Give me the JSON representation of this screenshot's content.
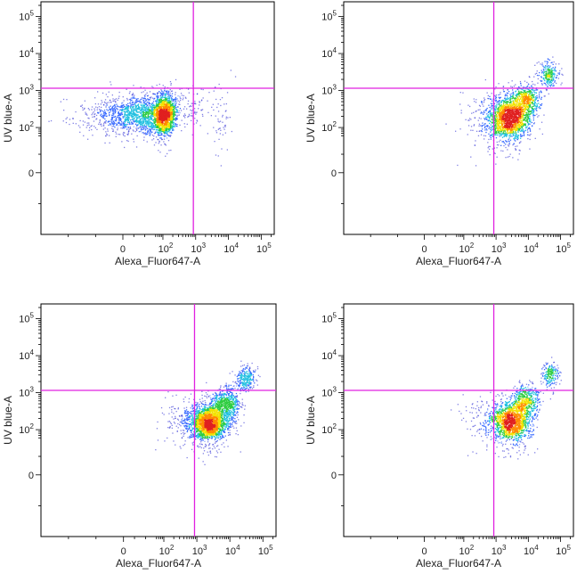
{
  "style": {
    "gate_color": "#e020e0",
    "density_colors": [
      "#1c1cd0",
      "#3a6bff",
      "#22c0e0",
      "#2ecc40",
      "#f2e200",
      "#ff8a00",
      "#e02020"
    ]
  },
  "chart_data": [
    {
      "type": "scatter",
      "plot": "top-left",
      "title": "",
      "xlabel": "Alexa_Fluor647-A",
      "ylabel": "UV blue-A",
      "xscale": "biexponential",
      "yscale": "biexponential",
      "xlim": [
        -150,
        250000
      ],
      "ylim": [
        -100,
        250000
      ],
      "x_tick_labels": [
        {
          "value": 0,
          "exp": ""
        },
        {
          "value": 100,
          "exp": "2"
        },
        {
          "value": 1000,
          "exp": "3"
        },
        {
          "value": 10000,
          "exp": "4"
        },
        {
          "value": 100000,
          "exp": "5"
        }
      ],
      "y_tick_labels": [
        {
          "value": 0,
          "exp": ""
        },
        {
          "value": 100,
          "exp": "2"
        },
        {
          "value": 1000,
          "exp": "3"
        },
        {
          "value": 10000,
          "exp": "4"
        },
        {
          "value": 100000,
          "exp": "5"
        }
      ],
      "quadrant_gate": {
        "x": 850,
        "y": 1150
      },
      "populations": [
        {
          "x_center": 40,
          "y_center": 220,
          "count": 2600,
          "spread_x": 0.45,
          "spread_y": 0.28
        },
        {
          "x_center": 400,
          "y_center": 350,
          "count": 150,
          "spread_x": 0.35,
          "spread_y": 0.3
        },
        {
          "x_center": 6000,
          "y_center": 250,
          "count": 60,
          "spread_x": 0.18,
          "spread_y": 0.5
        }
      ]
    },
    {
      "type": "scatter",
      "plot": "top-right",
      "title": "",
      "xlabel": "Alexa_Fluor647-A",
      "ylabel": "UV blue-A",
      "xscale": "biexponential",
      "yscale": "biexponential",
      "xlim": [
        -150,
        250000
      ],
      "ylim": [
        -100,
        250000
      ],
      "x_tick_labels": [
        {
          "value": 0,
          "exp": ""
        },
        {
          "value": 100,
          "exp": "2"
        },
        {
          "value": 1000,
          "exp": "3"
        },
        {
          "value": 10000,
          "exp": "4"
        },
        {
          "value": 100000,
          "exp": "5"
        }
      ],
      "y_tick_labels": [
        {
          "value": 0,
          "exp": ""
        },
        {
          "value": 100,
          "exp": "2"
        },
        {
          "value": 1000,
          "exp": "3"
        },
        {
          "value": 10000,
          "exp": "4"
        },
        {
          "value": 100000,
          "exp": "5"
        }
      ],
      "quadrant_gate": {
        "x": 850,
        "y": 1150
      },
      "populations": [
        {
          "x_center": 2500,
          "y_center": 180,
          "count": 1600,
          "spread_x": 0.32,
          "spread_y": 0.3
        },
        {
          "x_center": 8000,
          "y_center": 600,
          "count": 500,
          "spread_x": 0.22,
          "spread_y": 0.22
        },
        {
          "x_center": 40000,
          "y_center": 2800,
          "count": 220,
          "spread_x": 0.16,
          "spread_y": 0.18
        },
        {
          "x_center": 600,
          "y_center": 200,
          "count": 180,
          "spread_x": 0.45,
          "spread_y": 0.35
        }
      ]
    },
    {
      "type": "scatter",
      "plot": "bottom-left",
      "title": "",
      "xlabel": "Alexa_Fluor647-A",
      "ylabel": "UV blue-A",
      "xscale": "biexponential",
      "yscale": "biexponential",
      "xlim": [
        -150,
        250000
      ],
      "ylim": [
        -100,
        250000
      ],
      "x_tick_labels": [
        {
          "value": 0,
          "exp": ""
        },
        {
          "value": 100,
          "exp": "2"
        },
        {
          "value": 1000,
          "exp": "3"
        },
        {
          "value": 10000,
          "exp": "4"
        },
        {
          "value": 100000,
          "exp": "5"
        }
      ],
      "y_tick_labels": [
        {
          "value": 0,
          "exp": ""
        },
        {
          "value": 100,
          "exp": "2"
        },
        {
          "value": 1000,
          "exp": "3"
        },
        {
          "value": 10000,
          "exp": "4"
        },
        {
          "value": 100000,
          "exp": "5"
        }
      ],
      "quadrant_gate": {
        "x": 850,
        "y": 1150
      },
      "populations": [
        {
          "x_center": 2200,
          "y_center": 150,
          "count": 1800,
          "spread_x": 0.3,
          "spread_y": 0.25
        },
        {
          "x_center": 7000,
          "y_center": 500,
          "count": 600,
          "spread_x": 0.22,
          "spread_y": 0.22
        },
        {
          "x_center": 30000,
          "y_center": 2500,
          "count": 250,
          "spread_x": 0.16,
          "spread_y": 0.18
        },
        {
          "x_center": 500,
          "y_center": 200,
          "count": 200,
          "spread_x": 0.45,
          "spread_y": 0.35
        }
      ]
    },
    {
      "type": "scatter",
      "plot": "bottom-right",
      "title": "",
      "xlabel": "Alexa_Fluor647-A",
      "ylabel": "UV blue-A",
      "xscale": "biexponential",
      "yscale": "biexponential",
      "xlim": [
        -150,
        250000
      ],
      "ylim": [
        -100,
        250000
      ],
      "x_tick_labels": [
        {
          "value": 0,
          "exp": ""
        },
        {
          "value": 100,
          "exp": "2"
        },
        {
          "value": 1000,
          "exp": "3"
        },
        {
          "value": 10000,
          "exp": "4"
        },
        {
          "value": 100000,
          "exp": "5"
        }
      ],
      "y_tick_labels": [
        {
          "value": 0,
          "exp": ""
        },
        {
          "value": 100,
          "exp": "2"
        },
        {
          "value": 1000,
          "exp": "3"
        },
        {
          "value": 10000,
          "exp": "4"
        },
        {
          "value": 100000,
          "exp": "5"
        }
      ],
      "quadrant_gate": {
        "x": 850,
        "y": 1150
      },
      "populations": [
        {
          "x_center": 2800,
          "y_center": 170,
          "count": 1300,
          "spread_x": 0.3,
          "spread_y": 0.28
        },
        {
          "x_center": 8000,
          "y_center": 600,
          "count": 450,
          "spread_x": 0.22,
          "spread_y": 0.22
        },
        {
          "x_center": 45000,
          "y_center": 3200,
          "count": 180,
          "spread_x": 0.15,
          "spread_y": 0.16
        },
        {
          "x_center": 600,
          "y_center": 200,
          "count": 160,
          "spread_x": 0.45,
          "spread_y": 0.35
        }
      ]
    }
  ]
}
